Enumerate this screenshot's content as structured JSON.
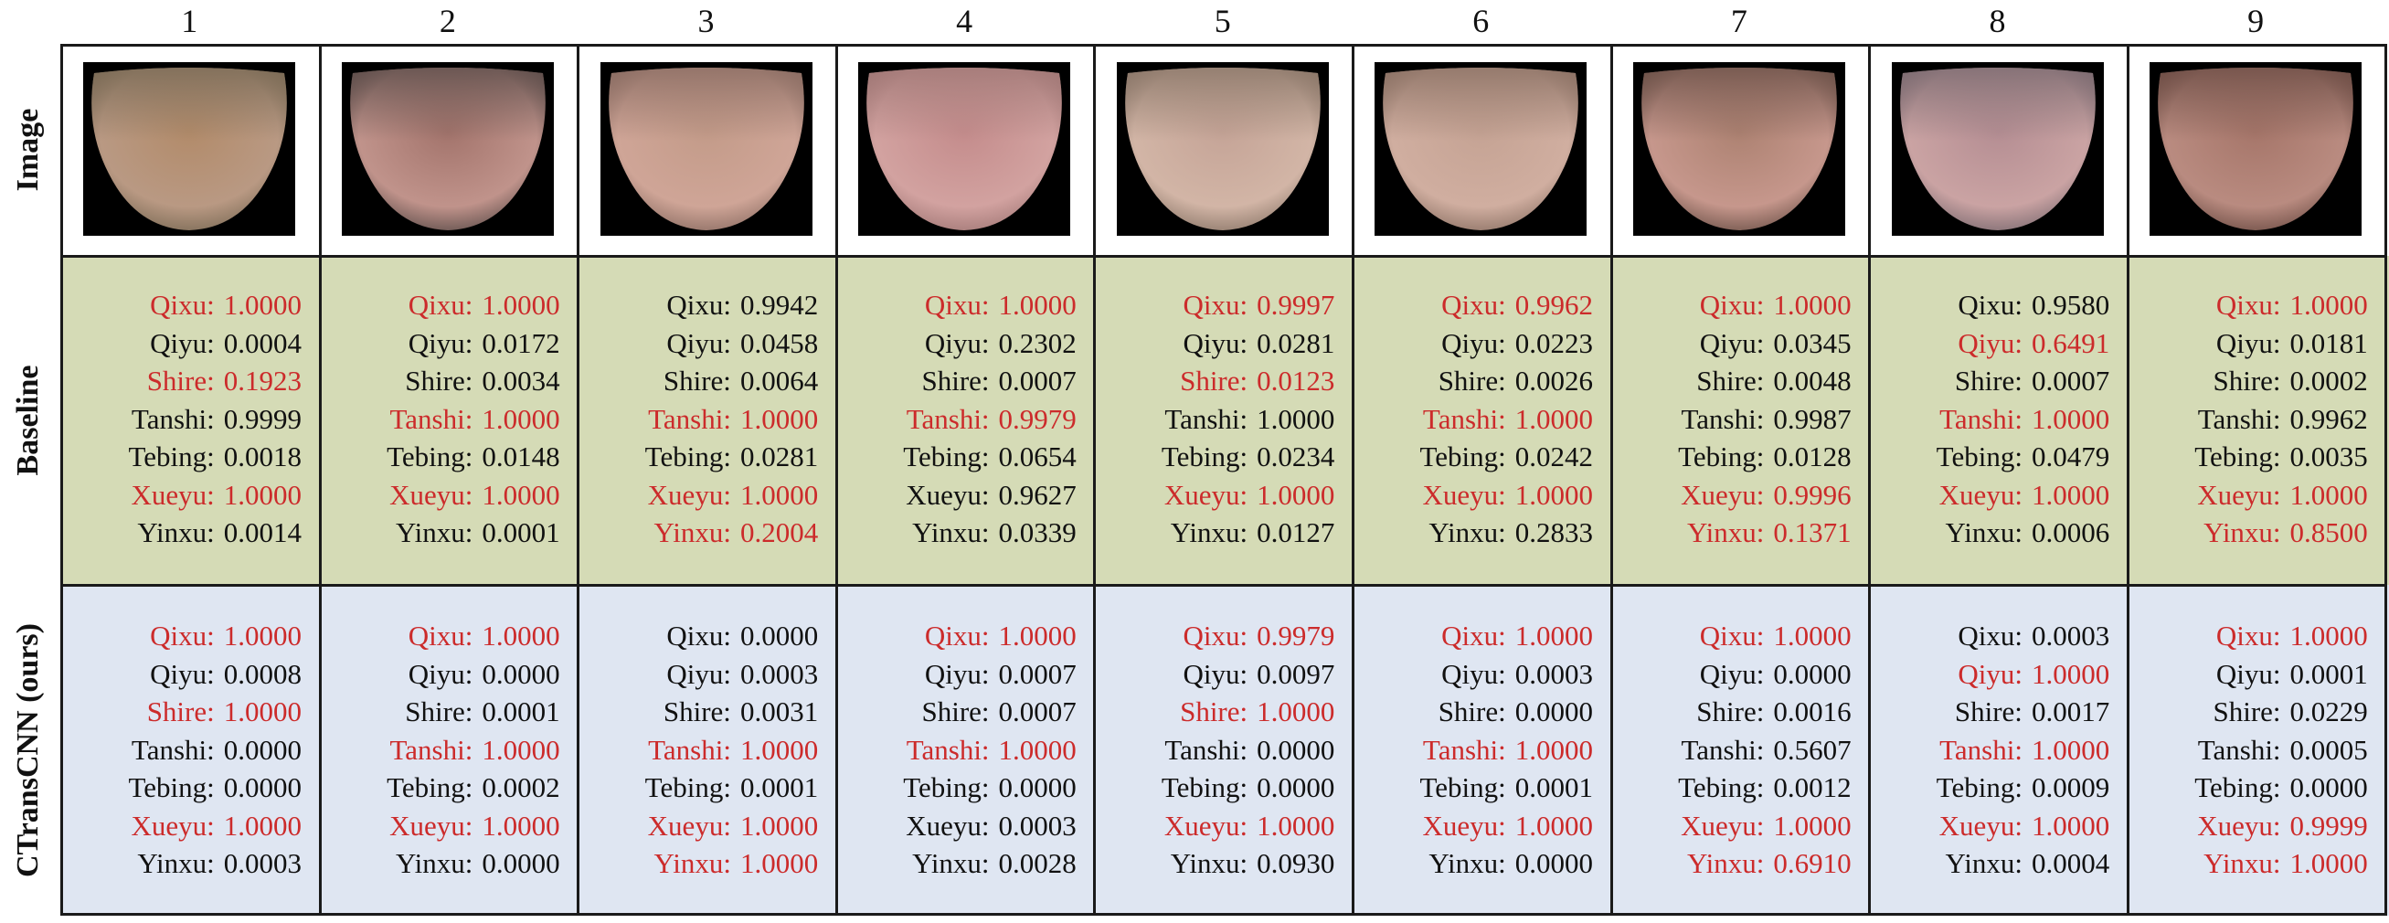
{
  "columns": [
    "1",
    "2",
    "3",
    "4",
    "5",
    "6",
    "7",
    "8",
    "9"
  ],
  "rows": {
    "image": "Image",
    "baseline": "Baseline",
    "ours": "CTransCNN (ours)"
  },
  "tongue_colors": [
    {
      "top": "#7a6a55",
      "mid": "#b28b6a",
      "edge": "#b99983"
    },
    {
      "top": "#5d4d4a",
      "mid": "#a3746c",
      "edge": "#c0938b"
    },
    {
      "top": "#8a6c62",
      "mid": "#c39b89",
      "edge": "#cfa597"
    },
    {
      "top": "#a07775",
      "mid": "#c48c8c",
      "edge": "#d2a2a0"
    },
    {
      "top": "#8a7668",
      "mid": "#c5a497",
      "edge": "#d2b5a6"
    },
    {
      "top": "#8b7164",
      "mid": "#c5a394",
      "edge": "#d0aea0"
    },
    {
      "top": "#6c5148",
      "mid": "#ad8272",
      "edge": "#c6978c"
    },
    {
      "top": "#7b6a70",
      "mid": "#b58e93",
      "edge": "#caa3a3"
    },
    {
      "top": "#6d4d45",
      "mid": "#a6766a",
      "edge": "#b98b80"
    }
  ],
  "baseline": [
    [
      [
        "Qixu:",
        "1.0000",
        true
      ],
      [
        "Qiyu:",
        "0.0004",
        false
      ],
      [
        "Shire:",
        "0.1923",
        true
      ],
      [
        "Tanshi:",
        "0.9999",
        false
      ],
      [
        "Tebing:",
        "0.0018",
        false
      ],
      [
        "Xueyu:",
        "1.0000",
        true
      ],
      [
        "Yinxu:",
        "0.0014",
        false
      ]
    ],
    [
      [
        "Qixu:",
        "1.0000",
        true
      ],
      [
        "Qiyu:",
        "0.0172",
        false
      ],
      [
        "Shire:",
        "0.0034",
        false
      ],
      [
        "Tanshi:",
        "1.0000",
        true
      ],
      [
        "Tebing:",
        "0.0148",
        false
      ],
      [
        "Xueyu:",
        "1.0000",
        true
      ],
      [
        "Yinxu:",
        "0.0001",
        false
      ]
    ],
    [
      [
        "Qixu:",
        "0.9942",
        false
      ],
      [
        "Qiyu:",
        "0.0458",
        false
      ],
      [
        "Shire:",
        "0.0064",
        false
      ],
      [
        "Tanshi:",
        "1.0000",
        true
      ],
      [
        "Tebing:",
        "0.0281",
        false
      ],
      [
        "Xueyu:",
        "1.0000",
        true
      ],
      [
        "Yinxu:",
        "0.2004",
        true
      ]
    ],
    [
      [
        "Qixu:",
        "1.0000",
        true
      ],
      [
        "Qiyu:",
        "0.2302",
        false
      ],
      [
        "Shire:",
        "0.0007",
        false
      ],
      [
        "Tanshi:",
        "0.9979",
        true
      ],
      [
        "Tebing:",
        "0.0654",
        false
      ],
      [
        "Xueyu:",
        "0.9627",
        false
      ],
      [
        "Yinxu:",
        "0.0339",
        false
      ]
    ],
    [
      [
        "Qixu:",
        "0.9997",
        true
      ],
      [
        "Qiyu:",
        "0.0281",
        false
      ],
      [
        "Shire:",
        "0.0123",
        true
      ],
      [
        "Tanshi:",
        "1.0000",
        false
      ],
      [
        "Tebing:",
        "0.0234",
        false
      ],
      [
        "Xueyu:",
        "1.0000",
        true
      ],
      [
        "Yinxu:",
        "0.0127",
        false
      ]
    ],
    [
      [
        "Qixu:",
        "0.9962",
        true
      ],
      [
        "Qiyu:",
        "0.0223",
        false
      ],
      [
        "Shire:",
        "0.0026",
        false
      ],
      [
        "Tanshi:",
        "1.0000",
        true
      ],
      [
        "Tebing:",
        "0.0242",
        false
      ],
      [
        "Xueyu:",
        "1.0000",
        true
      ],
      [
        "Yinxu:",
        "0.2833",
        false
      ]
    ],
    [
      [
        "Qixu:",
        "1.0000",
        true
      ],
      [
        "Qiyu:",
        "0.0345",
        false
      ],
      [
        "Shire:",
        "0.0048",
        false
      ],
      [
        "Tanshi:",
        "0.9987",
        false
      ],
      [
        "Tebing:",
        "0.0128",
        false
      ],
      [
        "Xueyu:",
        "0.9996",
        true
      ],
      [
        "Yinxu:",
        "0.1371",
        true
      ]
    ],
    [
      [
        "Qixu:",
        "0.9580",
        false
      ],
      [
        "Qiyu:",
        "0.6491",
        true
      ],
      [
        "Shire:",
        "0.0007",
        false
      ],
      [
        "Tanshi:",
        "1.0000",
        true
      ],
      [
        "Tebing:",
        "0.0479",
        false
      ],
      [
        "Xueyu:",
        "1.0000",
        true
      ],
      [
        "Yinxu:",
        "0.0006",
        false
      ]
    ],
    [
      [
        "Qixu:",
        "1.0000",
        true
      ],
      [
        "Qiyu:",
        "0.0181",
        false
      ],
      [
        "Shire:",
        "0.0002",
        false
      ],
      [
        "Tanshi:",
        "0.9962",
        false
      ],
      [
        "Tebing:",
        "0.0035",
        false
      ],
      [
        "Xueyu:",
        "1.0000",
        true
      ],
      [
        "Yinxu:",
        "0.8500",
        true
      ]
    ]
  ],
  "ours": [
    [
      [
        "Qixu:",
        "1.0000",
        true
      ],
      [
        "Qiyu:",
        "0.0008",
        false
      ],
      [
        "Shire:",
        "1.0000",
        true
      ],
      [
        "Tanshi:",
        "0.0000",
        false
      ],
      [
        "Tebing:",
        "0.0000",
        false
      ],
      [
        "Xueyu:",
        "1.0000",
        true
      ],
      [
        "Yinxu:",
        "0.0003",
        false
      ]
    ],
    [
      [
        "Qixu:",
        "1.0000",
        true
      ],
      [
        "Qiyu:",
        "0.0000",
        false
      ],
      [
        "Shire:",
        "0.0001",
        false
      ],
      [
        "Tanshi:",
        "1.0000",
        true
      ],
      [
        "Tebing:",
        "0.0002",
        false
      ],
      [
        "Xueyu:",
        "1.0000",
        true
      ],
      [
        "Yinxu:",
        "0.0000",
        false
      ]
    ],
    [
      [
        "Qixu:",
        "0.0000",
        false
      ],
      [
        "Qiyu:",
        "0.0003",
        false
      ],
      [
        "Shire:",
        "0.0031",
        false
      ],
      [
        "Tanshi:",
        "1.0000",
        true
      ],
      [
        "Tebing:",
        "0.0001",
        false
      ],
      [
        "Xueyu:",
        "1.0000",
        true
      ],
      [
        "Yinxu:",
        "1.0000",
        true
      ]
    ],
    [
      [
        "Qixu:",
        "1.0000",
        true
      ],
      [
        "Qiyu:",
        "0.0007",
        false
      ],
      [
        "Shire:",
        "0.0007",
        false
      ],
      [
        "Tanshi:",
        "1.0000",
        true
      ],
      [
        "Tebing:",
        "0.0000",
        false
      ],
      [
        "Xueyu:",
        "0.0003",
        false
      ],
      [
        "Yinxu:",
        "0.0028",
        false
      ]
    ],
    [
      [
        "Qixu:",
        "0.9979",
        true
      ],
      [
        "Qiyu:",
        "0.0097",
        false
      ],
      [
        "Shire:",
        "1.0000",
        true
      ],
      [
        "Tanshi:",
        "0.0000",
        false
      ],
      [
        "Tebing:",
        "0.0000",
        false
      ],
      [
        "Xueyu:",
        "1.0000",
        true
      ],
      [
        "Yinxu:",
        "0.0930",
        false
      ]
    ],
    [
      [
        "Qixu:",
        "1.0000",
        true
      ],
      [
        "Qiyu:",
        "0.0003",
        false
      ],
      [
        "Shire:",
        "0.0000",
        false
      ],
      [
        "Tanshi:",
        "1.0000",
        true
      ],
      [
        "Tebing:",
        "0.0001",
        false
      ],
      [
        "Xueyu:",
        "1.0000",
        true
      ],
      [
        "Yinxu:",
        "0.0000",
        false
      ]
    ],
    [
      [
        "Qixu:",
        "1.0000",
        true
      ],
      [
        "Qiyu:",
        "0.0000",
        false
      ],
      [
        "Shire:",
        "0.0016",
        false
      ],
      [
        "Tanshi:",
        "0.5607",
        false
      ],
      [
        "Tebing:",
        "0.0012",
        false
      ],
      [
        "Xueyu:",
        "1.0000",
        true
      ],
      [
        "Yinxu:",
        "0.6910",
        true
      ]
    ],
    [
      [
        "Qixu:",
        "0.0003",
        false
      ],
      [
        "Qiyu:",
        "1.0000",
        true
      ],
      [
        "Shire:",
        "0.0017",
        false
      ],
      [
        "Tanshi:",
        "1.0000",
        true
      ],
      [
        "Tebing:",
        "0.0009",
        false
      ],
      [
        "Xueyu:",
        "1.0000",
        true
      ],
      [
        "Yinxu:",
        "0.0004",
        false
      ]
    ],
    [
      [
        "Qixu:",
        "1.0000",
        true
      ],
      [
        "Qiyu:",
        "0.0001",
        false
      ],
      [
        "Shire:",
        "0.0229",
        false
      ],
      [
        "Tanshi:",
        "0.0005",
        false
      ],
      [
        "Tebing:",
        "0.0000",
        false
      ],
      [
        "Xueyu:",
        "0.9999",
        true
      ],
      [
        "Yinxu:",
        "1.0000",
        true
      ]
    ]
  ],
  "colors": {
    "highlight": "#cc2b2b",
    "text": "#111111",
    "baseline_bg": "#d5dbb6",
    "ours_bg": "#dfe6f2"
  }
}
